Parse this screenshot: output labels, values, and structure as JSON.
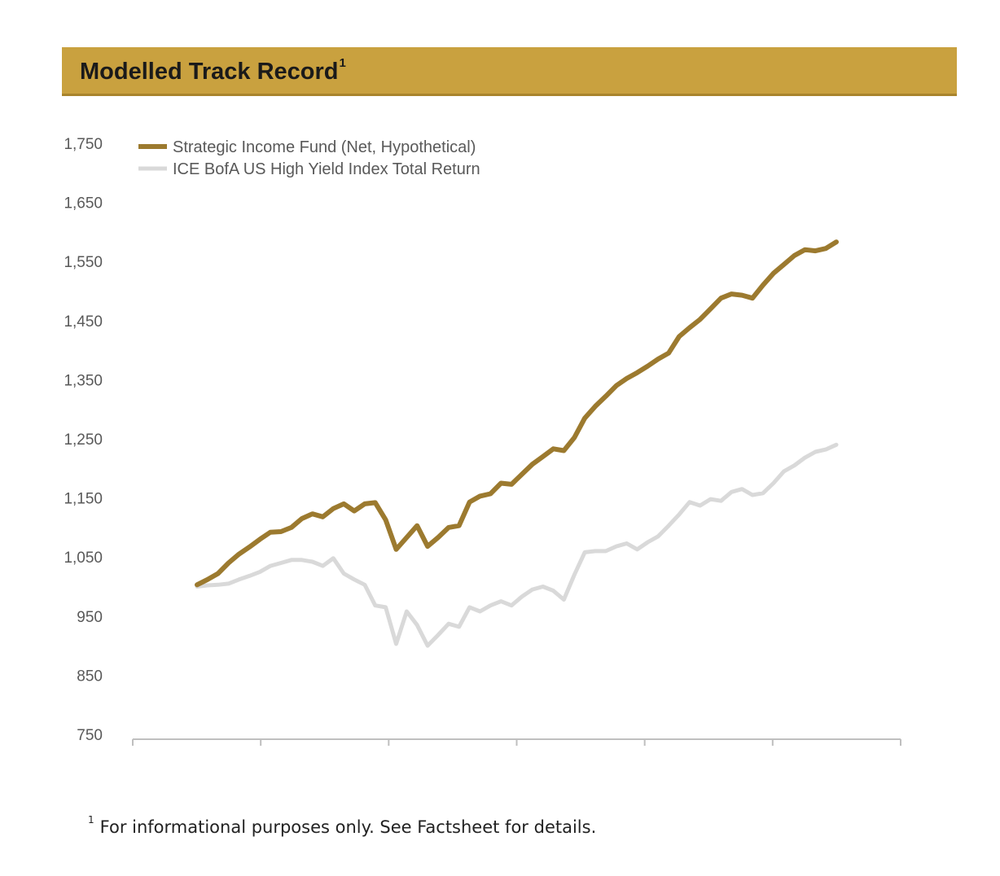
{
  "header": {
    "title": "Modelled Track Record",
    "superscript": "1"
  },
  "footnote": {
    "marker": "1",
    "text": "For informational purposes only. See Factsheet for details."
  },
  "colors": {
    "header_background": "#c9a13f",
    "fund_series": "#9c7a2f",
    "index_series": "#d9d9d9",
    "axis": "#bfbfbf",
    "tick_text": "#595959"
  },
  "chart_data": {
    "type": "line",
    "title": "",
    "xlabel": "",
    "ylabel": "",
    "ylim": [
      750,
      1750
    ],
    "yticks": [
      750,
      850,
      950,
      1050,
      1150,
      1250,
      1350,
      1450,
      1550,
      1650,
      1750
    ],
    "ytick_labels": [
      "750",
      "850",
      "950",
      "1,050",
      "1,150",
      "1,250",
      "1,350",
      "1,450",
      "1,550",
      "1,650",
      "1,750"
    ],
    "x_axis_tick_count": 7,
    "grid": false,
    "legend_position": "top-left",
    "series": [
      {
        "name": "Strategic Income Fund (Net, Hypothetical)",
        "color": "#9c7a2f",
        "values": [
          1003,
          1012,
          1022,
          1040,
          1055,
          1067,
          1080,
          1092,
          1093,
          1100,
          1115,
          1123,
          1118,
          1132,
          1140,
          1128,
          1140,
          1142,
          1113,
          1063,
          1083,
          1103,
          1068,
          1083,
          1100,
          1103,
          1143,
          1153,
          1157,
          1175,
          1173,
          1190,
          1207,
          1220,
          1233,
          1230,
          1252,
          1285,
          1305,
          1322,
          1340,
          1352,
          1362,
          1373,
          1385,
          1395,
          1423,
          1438,
          1452,
          1470,
          1488,
          1495,
          1493,
          1488,
          1510,
          1530,
          1545,
          1560,
          1570,
          1568,
          1572,
          1583
        ]
      },
      {
        "name": "ICE BofA US High Yield Index Total Return",
        "color": "#d9d9d9",
        "values": [
          1000,
          1002,
          1003,
          1005,
          1012,
          1018,
          1025,
          1035,
          1040,
          1045,
          1045,
          1042,
          1035,
          1048,
          1022,
          1012,
          1003,
          968,
          965,
          903,
          958,
          935,
          900,
          918,
          937,
          932,
          965,
          958,
          968,
          975,
          968,
          983,
          995,
          1000,
          993,
          978,
          1020,
          1058,
          1060,
          1060,
          1068,
          1073,
          1063,
          1075,
          1085,
          1103,
          1122,
          1143,
          1137,
          1148,
          1145,
          1160,
          1165,
          1155,
          1158,
          1175,
          1195,
          1205,
          1218,
          1228,
          1232,
          1240
        ]
      }
    ]
  }
}
